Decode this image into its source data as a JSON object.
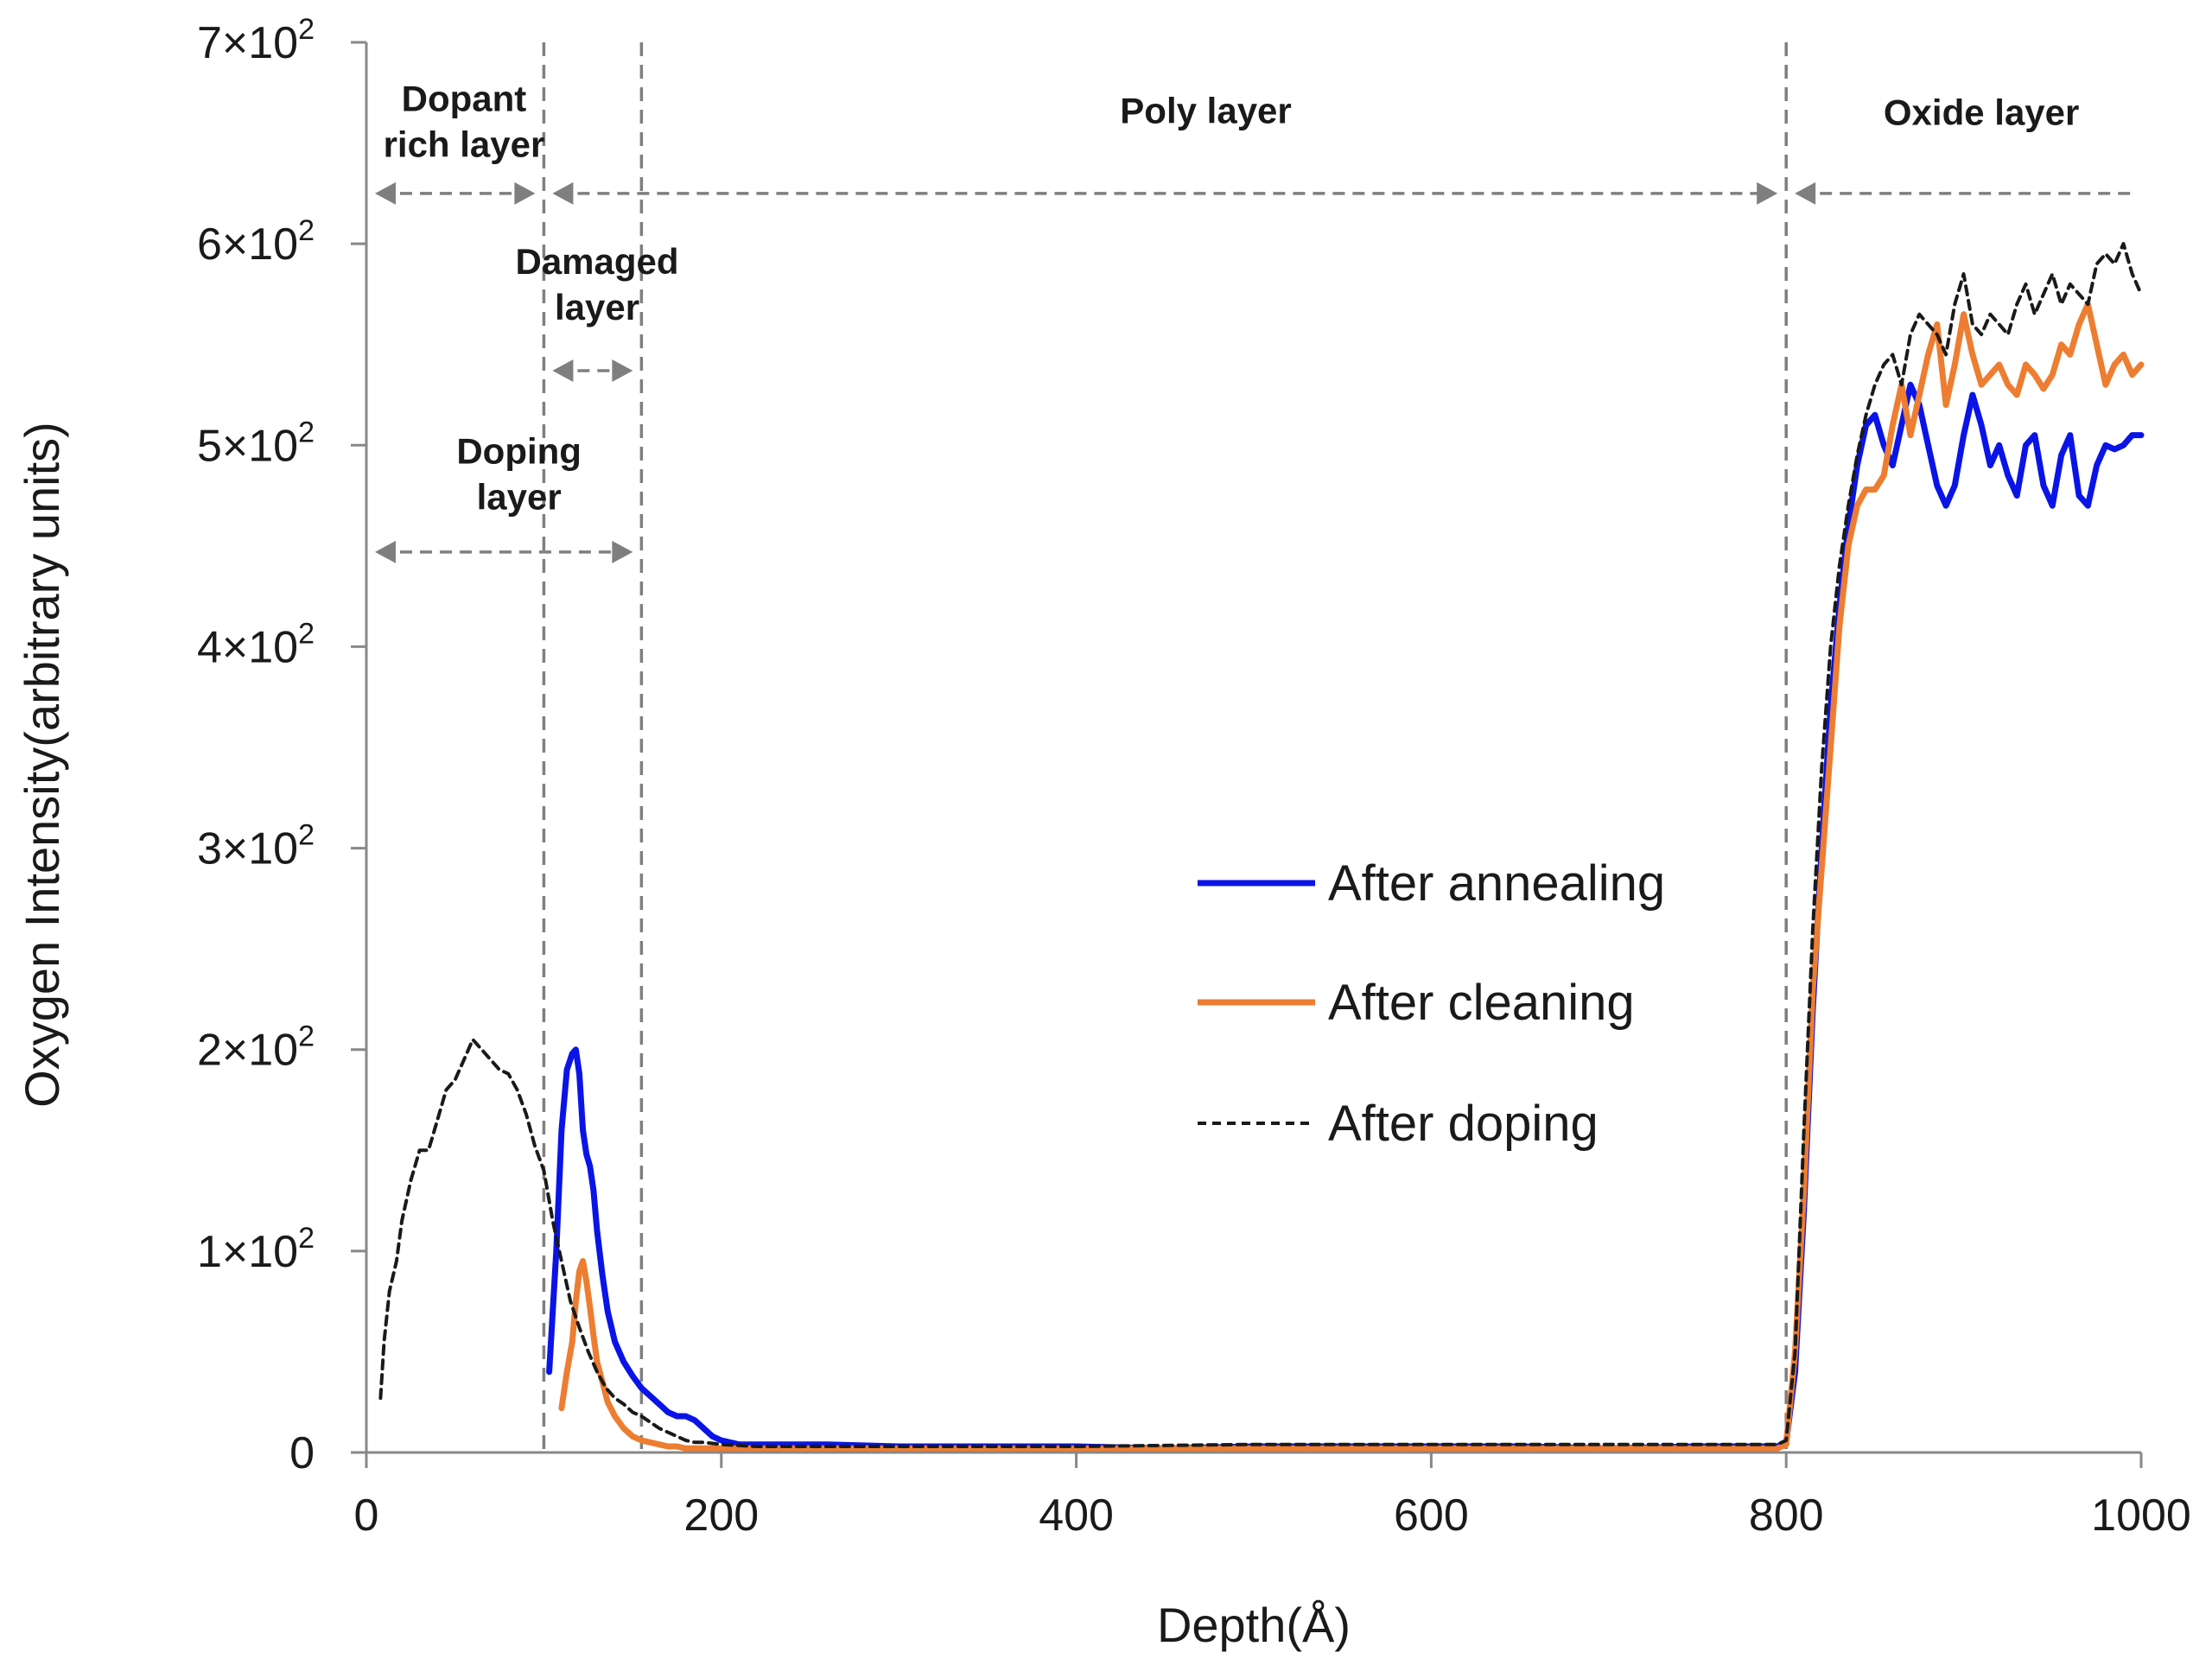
{
  "chart_data": {
    "type": "line",
    "title": "",
    "xlabel": "Depth(Å)",
    "ylabel": "Oxygen Intensity(arbitrary units)",
    "xlim": [
      0,
      1000
    ],
    "ylim": [
      0,
      700
    ],
    "xticks": [
      0,
      200,
      400,
      600,
      800,
      1000
    ],
    "xtick_labels": [
      "0",
      "200",
      "400",
      "600",
      "800",
      "1000"
    ],
    "yticks": [
      0,
      100,
      200,
      300,
      400,
      500,
      600,
      700
    ],
    "ytick_labels": [
      {
        "mant": "0",
        "exp": ""
      },
      {
        "mant": "1×10",
        "exp": "2"
      },
      {
        "mant": "2×10",
        "exp": "2"
      },
      {
        "mant": "3×10",
        "exp": "2"
      },
      {
        "mant": "4×10",
        "exp": "2"
      },
      {
        "mant": "5×10",
        "exp": "2"
      },
      {
        "mant": "6×10",
        "exp": "2"
      },
      {
        "mant": "7×10",
        "exp": "2"
      }
    ],
    "grid": false,
    "legend_position": "center-right",
    "series": [
      {
        "name": "After annealing",
        "color": "#0a14e6",
        "style": "solid",
        "x": [
          103,
          107,
          110,
          113,
          116,
          118,
          120,
          122,
          124,
          126,
          128,
          130,
          133,
          136,
          140,
          145,
          150,
          155,
          160,
          165,
          170,
          175,
          180,
          185,
          190,
          195,
          200,
          210,
          220,
          240,
          260,
          300,
          350,
          400,
          450,
          500,
          550,
          600,
          650,
          700,
          750,
          780,
          795,
          800,
          805,
          810,
          815,
          820,
          825,
          830,
          835,
          840,
          845,
          850,
          855,
          860,
          865,
          870,
          875,
          880,
          885,
          890,
          895,
          900,
          905,
          910,
          915,
          920,
          925,
          930,
          935,
          940,
          945,
          950,
          955,
          960,
          965,
          970,
          975,
          980,
          985,
          990,
          995,
          1000
        ],
        "y": [
          40,
          100,
          160,
          190,
          198,
          200,
          188,
          160,
          148,
          142,
          130,
          110,
          88,
          70,
          55,
          45,
          38,
          32,
          28,
          24,
          20,
          18,
          18,
          16,
          12,
          8,
          6,
          4,
          4,
          4,
          4,
          3,
          3,
          3,
          2,
          3,
          3,
          3,
          3,
          2,
          3,
          3,
          3,
          5,
          40,
          120,
          220,
          300,
          370,
          420,
          460,
          490,
          510,
          515,
          500,
          490,
          510,
          530,
          520,
          500,
          480,
          470,
          480,
          505,
          525,
          510,
          490,
          500,
          485,
          475,
          500,
          505,
          480,
          470,
          495,
          505,
          475,
          470,
          490,
          500,
          498,
          500,
          505,
          505
        ]
      },
      {
        "name": "After cleaning",
        "color": "#ed7d31",
        "style": "solid",
        "x": [
          110,
          113,
          116,
          118,
          120,
          122,
          124,
          126,
          128,
          130,
          133,
          136,
          140,
          145,
          150,
          155,
          160,
          165,
          170,
          175,
          180,
          190,
          200,
          220,
          250,
          300,
          400,
          500,
          600,
          700,
          780,
          795,
          800,
          805,
          810,
          815,
          820,
          825,
          830,
          835,
          840,
          845,
          850,
          855,
          860,
          865,
          870,
          875,
          880,
          885,
          890,
          895,
          900,
          905,
          910,
          915,
          920,
          925,
          930,
          935,
          940,
          945,
          950,
          955,
          960,
          965,
          970,
          975,
          980,
          985,
          990,
          995,
          1000
        ],
        "y": [
          22,
          40,
          55,
          75,
          90,
          95,
          85,
          72,
          58,
          45,
          35,
          25,
          18,
          12,
          8,
          6,
          5,
          4,
          3,
          3,
          2,
          2,
          2,
          2,
          2,
          2,
          2,
          2,
          2,
          2,
          2,
          2,
          4,
          50,
          130,
          230,
          290,
          350,
          410,
          450,
          470,
          478,
          478,
          485,
          510,
          530,
          505,
          525,
          545,
          560,
          520,
          540,
          565,
          545,
          530,
          535,
          540,
          530,
          525,
          540,
          535,
          528,
          535,
          550,
          545,
          560,
          570,
          550,
          530,
          540,
          545,
          535,
          540
        ]
      },
      {
        "name": "After doping",
        "color": "#1a1a1a",
        "style": "dashed",
        "x": [
          8,
          10,
          13,
          17,
          20,
          25,
          30,
          35,
          40,
          45,
          50,
          55,
          60,
          65,
          70,
          75,
          80,
          85,
          90,
          95,
          100,
          105,
          110,
          115,
          120,
          125,
          130,
          135,
          140,
          145,
          150,
          155,
          160,
          165,
          170,
          175,
          180,
          185,
          190,
          200,
          220,
          250,
          300,
          400,
          500,
          600,
          700,
          780,
          795,
          800,
          805,
          810,
          815,
          820,
          825,
          830,
          835,
          840,
          845,
          850,
          855,
          860,
          865,
          870,
          875,
          880,
          885,
          890,
          895,
          900,
          905,
          910,
          915,
          920,
          925,
          930,
          935,
          940,
          945,
          950,
          955,
          960,
          965,
          970,
          975,
          980,
          985,
          990,
          995,
          1000
        ],
        "y": [
          27,
          55,
          80,
          95,
          115,
          135,
          150,
          150,
          165,
          180,
          185,
          195,
          205,
          200,
          195,
          190,
          188,
          180,
          168,
          152,
          140,
          115,
          95,
          75,
          62,
          50,
          40,
          32,
          27,
          24,
          20,
          18,
          15,
          12,
          10,
          8,
          6,
          5,
          5,
          4,
          3,
          3,
          3,
          3,
          4,
          4,
          4,
          4,
          4,
          6,
          50,
          160,
          260,
          340,
          400,
          440,
          470,
          495,
          515,
          530,
          540,
          545,
          530,
          555,
          565,
          560,
          555,
          545,
          570,
          585,
          560,
          555,
          565,
          560,
          555,
          570,
          580,
          565,
          575,
          585,
          570,
          580,
          575,
          570,
          590,
          595,
          590,
          600,
          585,
          575
        ]
      }
    ],
    "annotations": {
      "vlines": [
        100,
        155,
        800
      ],
      "arrows": [
        {
          "from": 0,
          "to": 100,
          "y": 625
        },
        {
          "from": 100,
          "to": 800,
          "y": 625
        },
        {
          "from": 800,
          "to": 1000,
          "y": 625,
          "oneSided": true
        },
        {
          "from": 100,
          "to": 155,
          "y": 537
        },
        {
          "from": 0,
          "to": 155,
          "y": 447
        }
      ],
      "labels": [
        {
          "lines": [
            "Dopant",
            "rich layer"
          ],
          "x": 55,
          "y": 666
        },
        {
          "lines": [
            "Poly layer"
          ],
          "x": 473,
          "y": 660
        },
        {
          "lines": [
            "Oxide layer"
          ],
          "x": 910,
          "y": 659
        },
        {
          "lines": [
            "Damaged",
            "layer"
          ],
          "x": 130,
          "y": 585
        },
        {
          "lines": [
            "Doping",
            "layer"
          ],
          "x": 86,
          "y": 491
        }
      ]
    }
  }
}
